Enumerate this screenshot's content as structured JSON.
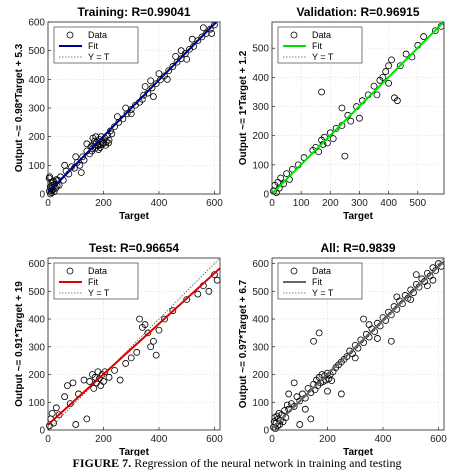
{
  "caption": {
    "figure_label": "FIGURE 7.",
    "text": " Regression of the neural network in training and testing"
  },
  "chart_data": [
    {
      "type": "scatter",
      "title": "Training: R=0.99041",
      "xlabel": "Target",
      "ylabel": "Output ~= 0.98*Target + 5.3",
      "xlim": [
        0,
        620
      ],
      "ylim": [
        0,
        600
      ],
      "xticks": [
        0,
        200,
        400,
        600
      ],
      "yticks": [
        0,
        100,
        200,
        300,
        400,
        500,
        600
      ],
      "fit": {
        "slope": 0.98,
        "intercept": 5.3,
        "color": "#00008B"
      },
      "legend": [
        "Data",
        "Fit",
        "Y = T"
      ],
      "legend_position": "top-left",
      "points": [
        [
          5,
          10
        ],
        [
          8,
          25
        ],
        [
          10,
          40
        ],
        [
          12,
          5
        ],
        [
          15,
          30
        ],
        [
          18,
          15
        ],
        [
          20,
          45
        ],
        [
          22,
          8
        ],
        [
          25,
          35
        ],
        [
          28,
          20
        ],
        [
          30,
          50
        ],
        [
          4,
          55
        ],
        [
          6,
          60
        ],
        [
          9,
          0
        ],
        [
          14,
          12
        ],
        [
          33,
          28
        ],
        [
          36,
          48
        ],
        [
          40,
          30
        ],
        [
          11,
          18
        ],
        [
          16,
          42
        ],
        [
          45,
          60
        ],
        [
          55,
          48
        ],
        [
          65,
          80
        ],
        [
          75,
          70
        ],
        [
          85,
          95
        ],
        [
          95,
          90
        ],
        [
          105,
          110
        ],
        [
          115,
          100
        ],
        [
          125,
          130
        ],
        [
          130,
          118
        ],
        [
          140,
          150
        ],
        [
          150,
          140
        ],
        [
          155,
          165
        ],
        [
          160,
          158
        ],
        [
          165,
          175
        ],
        [
          170,
          160
        ],
        [
          175,
          180
        ],
        [
          180,
          168
        ],
        [
          185,
          190
        ],
        [
          190,
          172
        ],
        [
          195,
          185
        ],
        [
          200,
          178
        ],
        [
          205,
          195
        ],
        [
          210,
          182
        ],
        [
          215,
          205
        ],
        [
          220,
          188
        ],
        [
          158,
          150
        ],
        [
          168,
          185
        ],
        [
          178,
          170
        ],
        [
          188,
          162
        ],
        [
          198,
          175
        ],
        [
          208,
          170
        ],
        [
          218,
          178
        ],
        [
          162,
          195
        ],
        [
          172,
          200
        ],
        [
          182,
          155
        ],
        [
          192,
          200
        ],
        [
          225,
          220
        ],
        [
          240,
          235
        ],
        [
          255,
          250
        ],
        [
          270,
          262
        ],
        [
          285,
          280
        ],
        [
          300,
          295
        ],
        [
          315,
          310
        ],
        [
          330,
          320
        ],
        [
          345,
          345
        ],
        [
          360,
          352
        ],
        [
          375,
          370
        ],
        [
          390,
          385
        ],
        [
          405,
          398
        ],
        [
          420,
          412
        ],
        [
          435,
          430
        ],
        [
          450,
          445
        ],
        [
          465,
          460
        ],
        [
          480,
          472
        ],
        [
          495,
          490
        ],
        [
          510,
          505
        ],
        [
          525,
          515
        ],
        [
          540,
          535
        ],
        [
          555,
          548
        ],
        [
          570,
          560
        ],
        [
          585,
          575
        ],
        [
          600,
          590
        ],
        [
          280,
          300
        ],
        [
          300,
          280
        ],
        [
          340,
          330
        ],
        [
          370,
          395
        ],
        [
          400,
          420
        ],
        [
          430,
          400
        ],
        [
          460,
          480
        ],
        [
          500,
          470
        ],
        [
          520,
          540
        ],
        [
          560,
          580
        ],
        [
          590,
          560
        ],
        [
          380,
          340
        ],
        [
          250,
          270
        ],
        [
          230,
          210
        ],
        [
          120,
          75
        ],
        [
          140,
          175
        ],
        [
          100,
          130
        ],
        [
          60,
          100
        ],
        [
          350,
          375
        ],
        [
          480,
          500
        ]
      ]
    },
    {
      "type": "scatter",
      "title": "Validation: R=0.96915",
      "xlabel": "Target",
      "ylabel": "Output ~= 1*Target + 1.2",
      "xlim": [
        0,
        590
      ],
      "ylim": [
        0,
        590
      ],
      "xticks": [
        0,
        100,
        200,
        300,
        400,
        500
      ],
      "yticks": [
        0,
        100,
        200,
        300,
        400,
        500
      ],
      "fit": {
        "slope": 1.0,
        "intercept": 1.2,
        "color": "#00E000"
      },
      "legend": [
        "Data",
        "Fit",
        "Y = T"
      ],
      "legend_position": "top-left",
      "points": [
        [
          5,
          10
        ],
        [
          10,
          30
        ],
        [
          15,
          5
        ],
        [
          20,
          40
        ],
        [
          25,
          20
        ],
        [
          30,
          55
        ],
        [
          40,
          35
        ],
        [
          50,
          70
        ],
        [
          60,
          50
        ],
        [
          70,
          85
        ],
        [
          90,
          100
        ],
        [
          110,
          125
        ],
        [
          140,
          150
        ],
        [
          150,
          160
        ],
        [
          160,
          145
        ],
        [
          170,
          185
        ],
        [
          175,
          170
        ],
        [
          180,
          195
        ],
        [
          190,
          175
        ],
        [
          200,
          210
        ],
        [
          210,
          190
        ],
        [
          220,
          225
        ],
        [
          240,
          235
        ],
        [
          250,
          130
        ],
        [
          260,
          270
        ],
        [
          270,
          250
        ],
        [
          290,
          300
        ],
        [
          310,
          320
        ],
        [
          330,
          340
        ],
        [
          350,
          370
        ],
        [
          360,
          340
        ],
        [
          370,
          390
        ],
        [
          380,
          400
        ],
        [
          390,
          420
        ],
        [
          400,
          440
        ],
        [
          410,
          460
        ],
        [
          420,
          330
        ],
        [
          440,
          440
        ],
        [
          460,
          480
        ],
        [
          480,
          470
        ],
        [
          500,
          510
        ],
        [
          520,
          540
        ],
        [
          560,
          560
        ],
        [
          580,
          575
        ],
        [
          170,
          350
        ],
        [
          240,
          295
        ],
        [
          300,
          260
        ],
        [
          400,
          380
        ],
        [
          430,
          320
        ]
      ]
    },
    {
      "type": "scatter",
      "title": "Test: R=0.96654",
      "xlabel": "Target",
      "ylabel": "Output ~= 0.91*Target + 19",
      "xlim": [
        0,
        620
      ],
      "ylim": [
        0,
        620
      ],
      "xticks": [
        0,
        200,
        400,
        600
      ],
      "yticks": [
        0,
        100,
        200,
        300,
        400,
        500,
        600
      ],
      "fit": {
        "slope": 0.91,
        "intercept": 19,
        "color": "#DD0000"
      },
      "legend": [
        "Data",
        "Fit",
        "Y = T"
      ],
      "legend_position": "top-left",
      "points": [
        [
          5,
          15
        ],
        [
          10,
          40
        ],
        [
          15,
          60
        ],
        [
          20,
          25
        ],
        [
          30,
          80
        ],
        [
          40,
          55
        ],
        [
          60,
          120
        ],
        [
          70,
          160
        ],
        [
          80,
          95
        ],
        [
          90,
          170
        ],
        [
          110,
          130
        ],
        [
          130,
          180
        ],
        [
          150,
          175
        ],
        [
          160,
          200
        ],
        [
          165,
          150
        ],
        [
          170,
          190
        ],
        [
          175,
          170
        ],
        [
          180,
          210
        ],
        [
          185,
          185
        ],
        [
          190,
          160
        ],
        [
          195,
          200
        ],
        [
          200,
          175
        ],
        [
          205,
          210
        ],
        [
          220,
          190
        ],
        [
          240,
          215
        ],
        [
          260,
          180
        ],
        [
          280,
          240
        ],
        [
          300,
          260
        ],
        [
          320,
          280
        ],
        [
          330,
          400
        ],
        [
          340,
          370
        ],
        [
          350,
          380
        ],
        [
          360,
          350
        ],
        [
          370,
          300
        ],
        [
          380,
          320
        ],
        [
          390,
          270
        ],
        [
          400,
          360
        ],
        [
          420,
          400
        ],
        [
          450,
          430
        ],
        [
          500,
          470
        ],
        [
          540,
          490
        ],
        [
          560,
          520
        ],
        [
          580,
          500
        ],
        [
          600,
          560
        ],
        [
          610,
          540
        ],
        [
          140,
          40
        ],
        [
          100,
          20
        ]
      ]
    },
    {
      "type": "scatter",
      "title": "All: R=0.9839",
      "xlabel": "Target",
      "ylabel": "Output ~= 0.97*Target + 6.7",
      "xlim": [
        0,
        620
      ],
      "ylim": [
        0,
        620
      ],
      "xticks": [
        0,
        200,
        400,
        600
      ],
      "yticks": [
        0,
        100,
        200,
        300,
        400,
        500,
        600
      ],
      "fit": {
        "slope": 0.97,
        "intercept": 6.7,
        "color": "#666666"
      },
      "legend": [
        "Data",
        "Fit",
        "Y = T"
      ],
      "legend_position": "top-left",
      "points": [
        [
          5,
          10
        ],
        [
          8,
          30
        ],
        [
          10,
          45
        ],
        [
          12,
          5
        ],
        [
          15,
          25
        ],
        [
          18,
          50
        ],
        [
          20,
          15
        ],
        [
          22,
          40
        ],
        [
          25,
          60
        ],
        [
          28,
          20
        ],
        [
          30,
          35
        ],
        [
          35,
          55
        ],
        [
          40,
          30
        ],
        [
          45,
          70
        ],
        [
          50,
          45
        ],
        [
          55,
          90
        ],
        [
          60,
          75
        ],
        [
          70,
          95
        ],
        [
          80,
          85
        ],
        [
          90,
          120
        ],
        [
          100,
          105
        ],
        [
          110,
          130
        ],
        [
          120,
          115
        ],
        [
          130,
          150
        ],
        [
          140,
          135
        ],
        [
          150,
          165
        ],
        [
          155,
          145
        ],
        [
          160,
          180
        ],
        [
          165,
          160
        ],
        [
          170,
          190
        ],
        [
          175,
          170
        ],
        [
          180,
          200
        ],
        [
          185,
          175
        ],
        [
          190,
          195
        ],
        [
          195,
          180
        ],
        [
          200,
          205
        ],
        [
          205,
          185
        ],
        [
          210,
          200
        ],
        [
          215,
          178
        ],
        [
          220,
          210
        ],
        [
          230,
          225
        ],
        [
          240,
          235
        ],
        [
          250,
          245
        ],
        [
          260,
          255
        ],
        [
          270,
          265
        ],
        [
          280,
          285
        ],
        [
          290,
          275
        ],
        [
          300,
          305
        ],
        [
          310,
          295
        ],
        [
          320,
          325
        ],
        [
          330,
          315
        ],
        [
          340,
          345
        ],
        [
          350,
          335
        ],
        [
          360,
          365
        ],
        [
          370,
          355
        ],
        [
          380,
          385
        ],
        [
          390,
          375
        ],
        [
          400,
          405
        ],
        [
          410,
          395
        ],
        [
          420,
          425
        ],
        [
          430,
          415
        ],
        [
          440,
          445
        ],
        [
          450,
          435
        ],
        [
          460,
          465
        ],
        [
          470,
          455
        ],
        [
          480,
          485
        ],
        [
          490,
          475
        ],
        [
          500,
          505
        ],
        [
          510,
          495
        ],
        [
          520,
          525
        ],
        [
          530,
          515
        ],
        [
          540,
          545
        ],
        [
          550,
          535
        ],
        [
          560,
          565
        ],
        [
          570,
          555
        ],
        [
          580,
          585
        ],
        [
          590,
          575
        ],
        [
          600,
          600
        ],
        [
          610,
          590
        ],
        [
          150,
          320
        ],
        [
          330,
          400
        ],
        [
          380,
          330
        ],
        [
          250,
          130
        ],
        [
          100,
          20
        ],
        [
          170,
          350
        ],
        [
          430,
          320
        ],
        [
          500,
          470
        ],
        [
          560,
          520
        ],
        [
          300,
          260
        ],
        [
          80,
          170
        ],
        [
          60,
          130
        ],
        [
          200,
          140
        ],
        [
          450,
          480
        ],
        [
          350,
          380
        ],
        [
          120,
          75
        ],
        [
          140,
          40
        ],
        [
          520,
          560
        ],
        [
          580,
          540
        ]
      ]
    }
  ]
}
